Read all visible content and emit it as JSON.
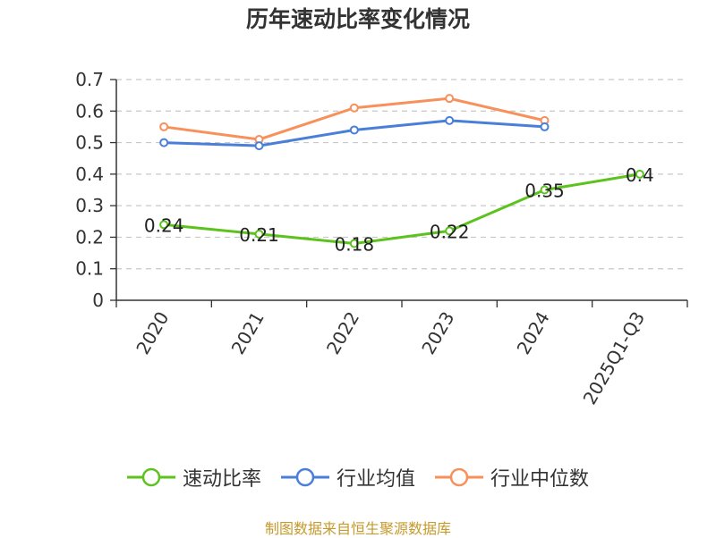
{
  "title": "历年速动比率变化情况",
  "source": "制图数据来自恒生聚源数据库",
  "chart_data": {
    "type": "line",
    "categories": [
      "2020",
      "2021",
      "2022",
      "2023",
      "2024",
      "2025Q1-Q3"
    ],
    "ylim": [
      0,
      0.7
    ],
    "yticks": [
      "0",
      "0.1",
      "0.2",
      "0.3",
      "0.4",
      "0.5",
      "0.6",
      "0.7"
    ],
    "grid": true,
    "legend": "bottom",
    "series": [
      {
        "name": "速动比率",
        "color": "#5cc21e",
        "labels": [
          "0.24",
          "0.21",
          "0.18",
          "0.22",
          "0.35",
          "0.4"
        ],
        "values": [
          0.24,
          0.21,
          0.18,
          0.22,
          0.35,
          0.4
        ]
      },
      {
        "name": "行业均值",
        "color": "#4a7fd9",
        "values": [
          0.5,
          0.49,
          0.54,
          0.57,
          0.55,
          null
        ]
      },
      {
        "name": "行业中位数",
        "color": "#f7905a",
        "values": [
          0.55,
          0.51,
          0.61,
          0.64,
          0.57,
          null
        ]
      }
    ]
  }
}
